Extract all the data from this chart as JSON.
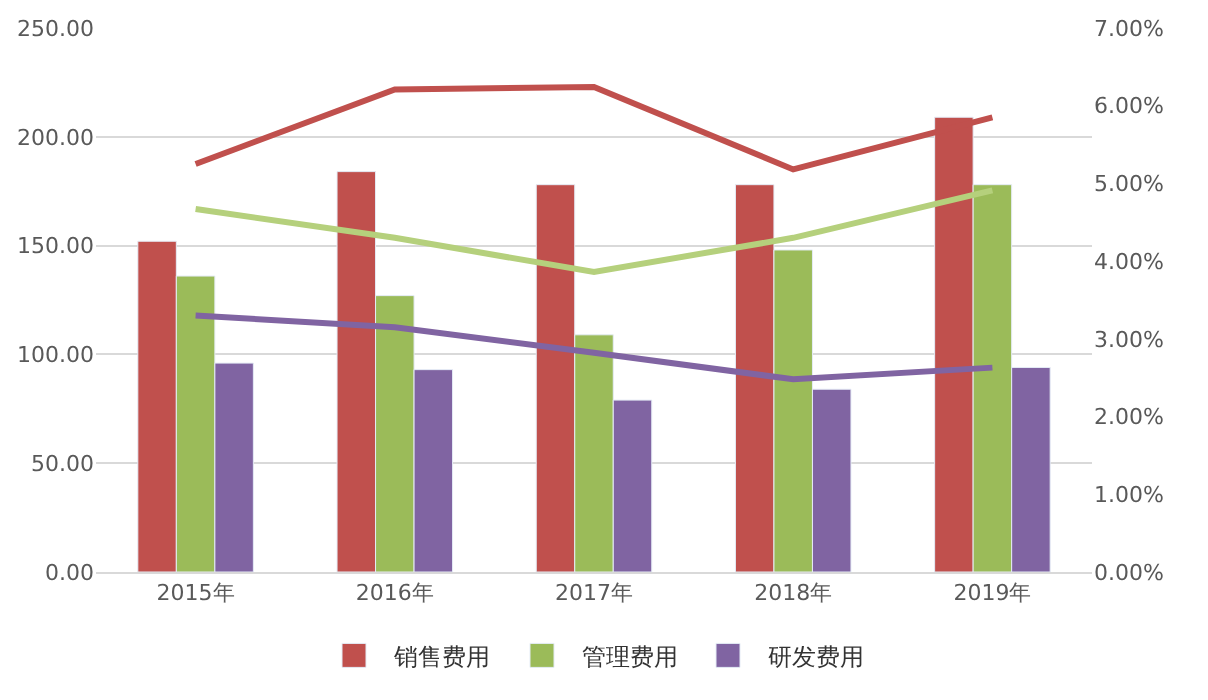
{
  "chart_data": {
    "type": "bar",
    "categories": [
      "2015年",
      "2016年",
      "2017年",
      "2018年",
      "2019年"
    ],
    "series": [
      {
        "name": "销售费用",
        "color": "#c0504d",
        "values": [
          152,
          184,
          178,
          178,
          209
        ]
      },
      {
        "name": "管理费用",
        "color": "#9bbb59",
        "values": [
          136,
          127,
          109,
          148,
          178
        ]
      },
      {
        "name": "研发费用",
        "color": "#8064a2",
        "values": [
          96,
          93,
          79,
          84,
          94
        ]
      },
      {
        "type": "line",
        "axis": "y2",
        "color": "#c0504d",
        "values": [
          5.25,
          6.21,
          6.24,
          5.18,
          5.85
        ]
      },
      {
        "type": "line",
        "axis": "y2",
        "color": "#b5d07c",
        "values": [
          4.67,
          4.3,
          3.86,
          4.3,
          4.91
        ]
      },
      {
        "type": "line",
        "axis": "y2",
        "color": "#8064a2",
        "values": [
          3.3,
          3.15,
          2.82,
          2.48,
          2.63
        ]
      }
    ],
    "ylim": [
      0,
      250
    ],
    "yticks": [
      {
        "value": 0,
        "label": "0.00"
      },
      {
        "value": 50,
        "label": "50.00"
      },
      {
        "value": 100,
        "label": "100.00"
      },
      {
        "value": 150,
        "label": "150.00"
      },
      {
        "value": 200,
        "label": "200.00"
      },
      {
        "value": 250,
        "label": "250.00"
      }
    ],
    "y2lim": [
      0,
      7
    ],
    "y2ticks": [
      {
        "value": 0,
        "label": "0.00%"
      },
      {
        "value": 1,
        "label": "1.00%"
      },
      {
        "value": 2,
        "label": "2.00%"
      },
      {
        "value": 3,
        "label": "3.00%"
      },
      {
        "value": 4,
        "label": "4.00%"
      },
      {
        "value": 5,
        "label": "5.00%"
      },
      {
        "value": 6,
        "label": "6.00%"
      },
      {
        "value": 7,
        "label": "7.00%"
      }
    ],
    "grid": "y",
    "legend": "bottom",
    "marker": "none"
  }
}
